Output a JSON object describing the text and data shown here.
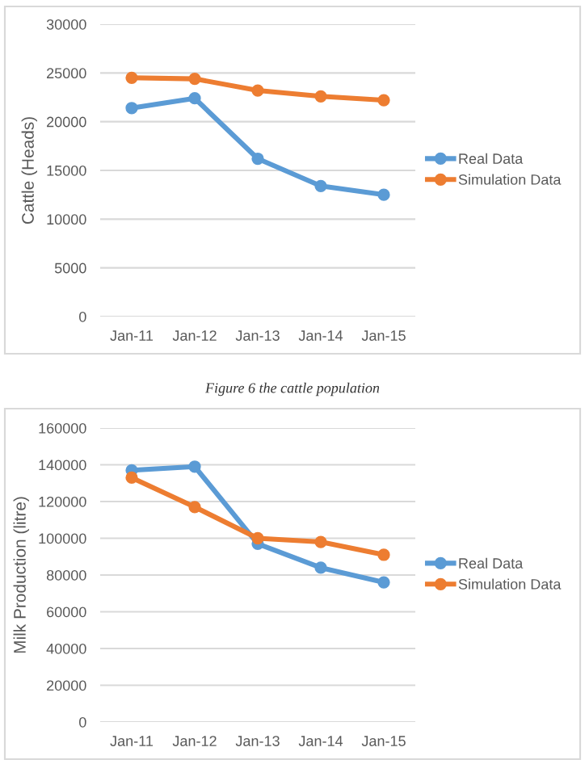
{
  "chart_data": [
    {
      "type": "line",
      "ylabel": "Cattle (Heads)",
      "categories": [
        "Jan-11",
        "Jan-12",
        "Jan-13",
        "Jan-14",
        "Jan-15"
      ],
      "series": [
        {
          "name": "Real Data",
          "color": "#5b9bd5",
          "values": [
            21400,
            22400,
            16200,
            13400,
            12500
          ]
        },
        {
          "name": "Simulation Data",
          "color": "#ed7d31",
          "values": [
            24500,
            24400,
            23200,
            22600,
            22200
          ]
        }
      ],
      "ylim": [
        0,
        30000
      ],
      "yticks": [
        0,
        5000,
        10000,
        15000,
        20000,
        25000,
        30000
      ],
      "grid": "y",
      "legend": "right",
      "marker": "circle",
      "line_style": "solid",
      "annotations": [
        "Figure 6 the cattle population"
      ]
    },
    {
      "type": "line",
      "ylabel": "Milk Production (litre)",
      "categories": [
        "Jan-11",
        "Jan-12",
        "Jan-13",
        "Jan-14",
        "Jan-15"
      ],
      "series": [
        {
          "name": "Real Data",
          "color": "#5b9bd5",
          "values": [
            137000,
            139000,
            97000,
            84000,
            76000
          ]
        },
        {
          "name": "Simulation Data",
          "color": "#ed7d31",
          "values": [
            133000,
            117000,
            100000,
            98000,
            91000
          ]
        }
      ],
      "ylim": [
        0,
        160000
      ],
      "yticks": [
        0,
        20000,
        40000,
        60000,
        80000,
        100000,
        120000,
        140000,
        160000
      ],
      "grid": "y",
      "legend": "right",
      "marker": "circle",
      "line_style": "solid"
    }
  ]
}
